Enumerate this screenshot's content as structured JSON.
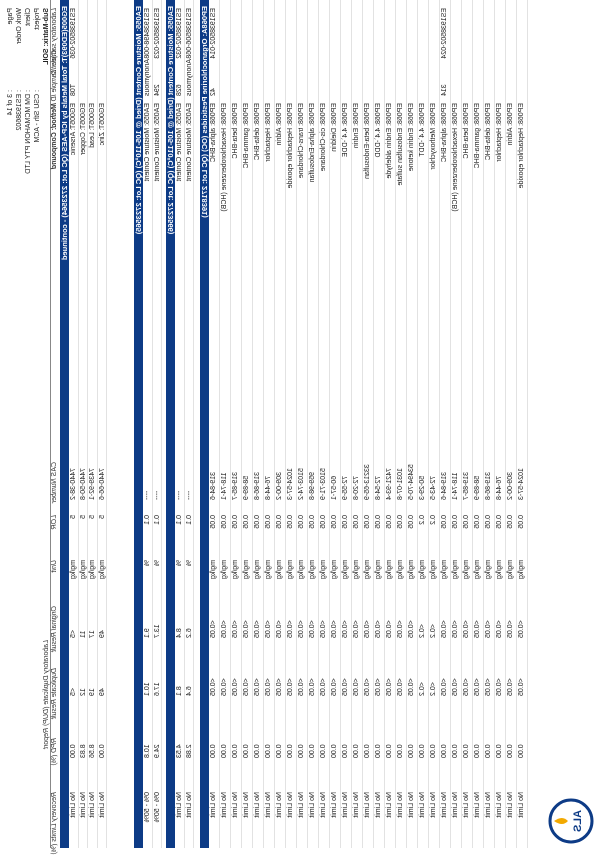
{
  "header": {
    "page_label": "Page",
    "page": ": 3 of 14",
    "work_order_label": "Work Order",
    "work_order": ": ES1938602",
    "client_label": "Client",
    "client": ": DM MCMAHON PTY LTD",
    "project_label": "Project",
    "project": ": CSU Sth - ACM",
    "sub_matrix": "Sub-Matrix: SOIL",
    "logo": "ALS"
  },
  "columns": {
    "lab_id": "Laboratory sample ID",
    "client_id": "Client sample ID",
    "method": "Method: Compound",
    "cas": "CAS Number",
    "lor": "LOR",
    "unit": "Unit",
    "group": "Laboratory Duplicate (DUP) Report",
    "original": "Original Result",
    "duplicate": "Duplicate Result",
    "rpd": "RPD (%)",
    "limits": "Recovery Limits (%)"
  },
  "sections": [
    {
      "title": "EG005(ED093)T: Total Metals by ICP-AES (QC Lot: 2723564) - continued",
      "rows": [
        {
          "lab_id": "ES1938502-036",
          "client_id": "T08",
          "cells": [
            "EG005T: Arsenic",
            "7440-38-2",
            "5",
            "mg/kg",
            "<5",
            "<5",
            "0.00",
            "No Limit"
          ]
        },
        {
          "cells": [
            "EG005T: Copper",
            "7440-50-8",
            "5",
            "mg/kg",
            "11",
            "12",
            "8.83",
            "No Limit"
          ]
        },
        {
          "cells": [
            "EG005T: Lead",
            "7439-92-1",
            "5",
            "mg/kg",
            "17",
            "19",
            "8.56",
            "No Limit"
          ]
        },
        {
          "cells": [
            "EG005T: Zinc",
            "7440-66-6",
            "5",
            "mg/kg",
            "49",
            "49",
            "0.00",
            "No Limit"
          ]
        }
      ]
    },
    {
      "title": "EA055: Moisture Content (Dried @ 105-110°C) (QC Lot: 2723565)",
      "rows": [
        {
          "lab_id": "ES1938498-008",
          "client_id": "Anonymous",
          "cells": [
            "EA055: Moisture Content",
            "----",
            "0.1",
            "%",
            "9.1",
            "10.1",
            "10.8",
            "0% - 50%"
          ]
        },
        {
          "lab_id": "ES1938502-023",
          "client_id": "294",
          "cells": [
            "EA055: Moisture Content",
            "----",
            "0.1",
            "%",
            "13.7",
            "17.6",
            "24.9",
            "0% - 50%"
          ]
        }
      ]
    },
    {
      "title": "EA055: Moisture Content (Dried @ 105-110°C) (QC Lot: 2723566)",
      "rows": [
        {
          "lab_id": "ES1938502-032",
          "client_id": "628",
          "cells": [
            "EA055: Moisture Content",
            "----",
            "0.1",
            "%",
            "8.4",
            "8.1",
            "4.53",
            "No Limit"
          ]
        },
        {
          "lab_id": "ES1938506-068",
          "client_id": "Anonymous",
          "cells": [
            "EA055: Moisture Content",
            "----",
            "0.1",
            "%",
            "6.2",
            "6.4",
            "2.88",
            "No Limit"
          ]
        }
      ]
    },
    {
      "title": "EP068A: Organochlorine Pesticides (OC) (QC Lot: 2718391)",
      "rows": [
        {
          "lab_id": "ES1938502-014",
          "client_id": "42",
          "cells": [
            "EP068: alpha-BHC",
            "319-84-6",
            "0.05",
            "mg/kg",
            "<0.05",
            "<0.05",
            "0.00",
            "No Limit"
          ]
        },
        {
          "cells": [
            "EP068: Hexachlorobenzene (HCB)",
            "118-74-1",
            "0.05",
            "mg/kg",
            "<0.05",
            "<0.05",
            "0.00",
            "No Limit"
          ]
        },
        {
          "cells": [
            "EP068: beta-BHC",
            "319-85-7",
            "0.05",
            "mg/kg",
            "<0.05",
            "<0.05",
            "0.00",
            "No Limit"
          ]
        },
        {
          "cells": [
            "EP068: gamma-BHC",
            "58-89-9",
            "0.05",
            "mg/kg",
            "<0.05",
            "<0.05",
            "0.00",
            "No Limit"
          ]
        },
        {
          "cells": [
            "EP068: delta-BHC",
            "319-86-8",
            "0.05",
            "mg/kg",
            "<0.05",
            "<0.05",
            "0.00",
            "No Limit"
          ]
        },
        {
          "cells": [
            "EP068: Heptachlor",
            "76-44-8",
            "0.05",
            "mg/kg",
            "<0.05",
            "<0.05",
            "0.00",
            "No Limit"
          ]
        },
        {
          "cells": [
            "EP068: Aldrin",
            "309-00-2",
            "0.05",
            "mg/kg",
            "<0.05",
            "<0.05",
            "0.00",
            "No Limit"
          ]
        },
        {
          "cells": [
            "EP068: Heptachlor epoxide",
            "1024-57-3",
            "0.05",
            "mg/kg",
            "<0.05",
            "<0.05",
            "0.00",
            "No Limit"
          ]
        },
        {
          "cells": [
            "EP068: trans-Chlordane",
            "5103-74-2",
            "0.05",
            "mg/kg",
            "<0.05",
            "<0.05",
            "0.00",
            "No Limit"
          ]
        },
        {
          "cells": [
            "EP068: alpha-Endosulfan",
            "959-98-8",
            "0.05",
            "mg/kg",
            "<0.05",
            "<0.05",
            "0.00",
            "No Limit"
          ]
        },
        {
          "cells": [
            "EP068: cis-Chlordane",
            "5103-71-9",
            "0.05",
            "mg/kg",
            "<0.05",
            "<0.05",
            "0.00",
            "No Limit"
          ]
        },
        {
          "cells": [
            "EP068: Dieldrin",
            "60-57-1",
            "0.05",
            "mg/kg",
            "<0.05",
            "<0.05",
            "0.00",
            "No Limit"
          ]
        },
        {
          "cells": [
            "EP068: 4.4`-DDE",
            "72-55-9",
            "0.05",
            "mg/kg",
            "<0.05",
            "<0.05",
            "0.00",
            "No Limit"
          ]
        },
        {
          "cells": [
            "EP068: Endrin",
            "72-20-8",
            "0.05",
            "mg/kg",
            "<0.05",
            "<0.05",
            "0.00",
            "No Limit"
          ]
        },
        {
          "cells": [
            "EP068: beta-Endosulfan",
            "33213-65-9",
            "0.05",
            "mg/kg",
            "<0.05",
            "<0.05",
            "0.00",
            "No Limit"
          ]
        },
        {
          "cells": [
            "EP068: 4.4`-DDD",
            "72-54-8",
            "0.05",
            "mg/kg",
            "<0.05",
            "<0.05",
            "0.00",
            "No Limit"
          ]
        },
        {
          "cells": [
            "EP068: Endrin aldehyde",
            "7421-93-4",
            "0.05",
            "mg/kg",
            "<0.05",
            "<0.05",
            "0.00",
            "No Limit"
          ]
        },
        {
          "cells": [
            "EP068: Endosulfan sulfate",
            "1031-07-8",
            "0.05",
            "mg/kg",
            "<0.05",
            "<0.05",
            "0.00",
            "No Limit"
          ]
        },
        {
          "cells": [
            "EP068: Endrin ketone",
            "53494-70-5",
            "0.05",
            "mg/kg",
            "<0.05",
            "<0.05",
            "0.00",
            "No Limit"
          ]
        },
        {
          "cells": [
            "EP068: 4.4`-DDT",
            "50-29-3",
            "0.2",
            "mg/kg",
            "<0.2",
            "<0.2",
            "0.00",
            "No Limit"
          ]
        },
        {
          "cells": [
            "EP068: Methoxychlor",
            "72-43-5",
            "0.2",
            "mg/kg",
            "<0.2",
            "<0.2",
            "0.00",
            "No Limit"
          ]
        },
        {
          "lab_id": "ES1938502-024",
          "client_id": "314",
          "cells": [
            "EP068: alpha-BHC",
            "319-84-6",
            "0.05",
            "mg/kg",
            "<0.05",
            "<0.05",
            "0.00",
            "No Limit"
          ]
        },
        {
          "cells": [
            "EP068: Hexachlorobenzene (HCB)",
            "118-74-1",
            "0.05",
            "mg/kg",
            "<0.05",
            "<0.05",
            "0.00",
            "No Limit"
          ]
        },
        {
          "cells": [
            "EP068: beta-BHC",
            "319-85-7",
            "0.05",
            "mg/kg",
            "<0.05",
            "<0.05",
            "0.00",
            "No Limit"
          ]
        },
        {
          "cells": [
            "EP068: gamma-BHC",
            "58-89-9",
            "0.05",
            "mg/kg",
            "<0.05",
            "<0.05",
            "0.00",
            "No Limit"
          ]
        },
        {
          "cells": [
            "EP068: delta-BHC",
            "319-86-8",
            "0.05",
            "mg/kg",
            "<0.05",
            "<0.05",
            "0.00",
            "No Limit"
          ]
        },
        {
          "cells": [
            "EP068: Heptachlor",
            "76-44-8",
            "0.05",
            "mg/kg",
            "<0.05",
            "<0.05",
            "0.00",
            "No Limit"
          ]
        },
        {
          "cells": [
            "EP068: Aldrin",
            "309-00-2",
            "0.05",
            "mg/kg",
            "<0.05",
            "<0.05",
            "0.00",
            "No Limit"
          ]
        },
        {
          "cells": [
            "EP068: Heptachlor epoxide",
            "1024-57-3",
            "0.05",
            "mg/kg",
            "<0.05",
            "<0.05",
            "0.00",
            "No Limit"
          ]
        }
      ]
    }
  ]
}
